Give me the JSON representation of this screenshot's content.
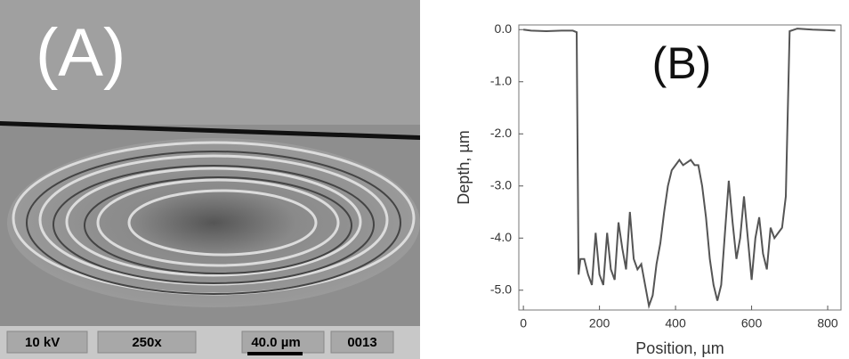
{
  "image_panel": {
    "panel_label": "(A)",
    "scale_bar": {
      "voltage": "10 kV",
      "magnification": "250x",
      "length": "40.0 µm",
      "frame": "0013"
    }
  },
  "chart_data": {
    "type": "line",
    "panel_label": "(B)",
    "x_label": "Position, µm",
    "y_label": "Depth, µm",
    "color": "#555555",
    "x": [
      0,
      20,
      60,
      100,
      130,
      140,
      145,
      150,
      160,
      170,
      180,
      190,
      200,
      210,
      220,
      230,
      240,
      250,
      260,
      270,
      280,
      290,
      300,
      310,
      320,
      330,
      340,
      350,
      360,
      370,
      380,
      390,
      400,
      410,
      420,
      440,
      450,
      460,
      470,
      480,
      490,
      500,
      510,
      520,
      530,
      540,
      550,
      560,
      570,
      580,
      590,
      600,
      610,
      620,
      630,
      640,
      650,
      660,
      670,
      680,
      690,
      700,
      720,
      760,
      800,
      820
    ],
    "values": [
      0,
      -0.02,
      -0.03,
      -0.02,
      -0.02,
      -0.05,
      -4.7,
      -4.4,
      -4.4,
      -4.7,
      -4.9,
      -3.9,
      -4.7,
      -4.9,
      -3.9,
      -4.6,
      -4.8,
      -3.7,
      -4.2,
      -4.6,
      -3.5,
      -4.4,
      -4.6,
      -4.5,
      -4.9,
      -5.3,
      -5.1,
      -4.5,
      -4.1,
      -3.5,
      -3.0,
      -2.7,
      -2.6,
      -2.5,
      -2.6,
      -2.5,
      -2.6,
      -2.6,
      -3.0,
      -3.6,
      -4.4,
      -4.9,
      -5.2,
      -4.9,
      -3.9,
      -2.9,
      -3.7,
      -4.4,
      -4.0,
      -3.2,
      -4.0,
      -4.8,
      -4.0,
      -3.6,
      -4.3,
      -4.6,
      -3.8,
      -4.0,
      -3.9,
      -3.8,
      -3.2,
      -0.03,
      0.02,
      0,
      -0.01,
      -0.02
    ],
    "xlim": [
      -12,
      835
    ],
    "ylim": [
      -5.38,
      0.09
    ],
    "xticks": [
      0,
      200,
      400,
      600,
      800
    ],
    "yticks": [
      {
        "value": 0,
        "label": "0.0"
      },
      {
        "value": -1,
        "label": "-1.0"
      },
      {
        "value": -2,
        "label": "-2.0"
      },
      {
        "value": -3,
        "label": "-3.0"
      },
      {
        "value": -4,
        "label": "-4.0"
      },
      {
        "value": -5,
        "label": "-5.0"
      }
    ]
  }
}
